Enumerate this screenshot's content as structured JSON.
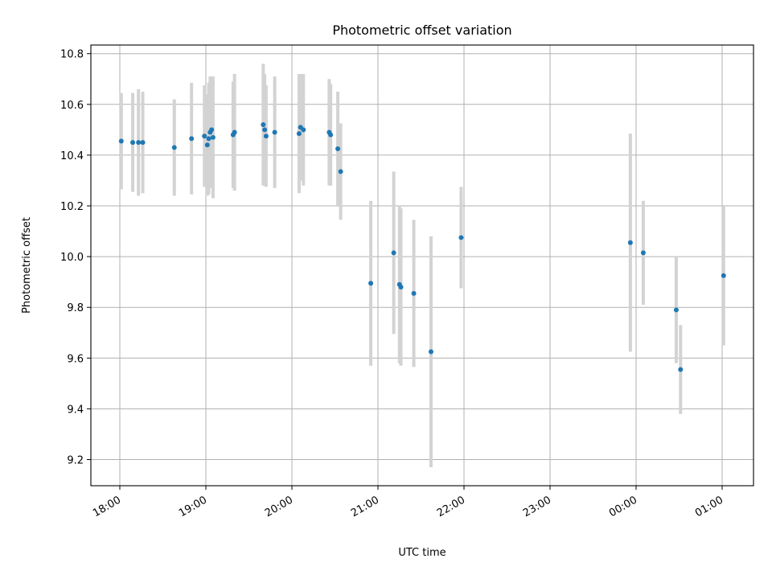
{
  "chart_data": {
    "type": "scatter",
    "title": "Photometric offset variation",
    "xlabel": "UTC time",
    "ylabel": "Photometric offset",
    "x_tick_labels": [
      "18:00",
      "19:00",
      "20:00",
      "21:00",
      "22:00",
      "23:00",
      "00:00",
      "01:00"
    ],
    "y_tick_labels": [
      "9.2",
      "9.4",
      "9.6",
      "9.8",
      "10.0",
      "10.2",
      "10.4",
      "10.6",
      "10.8"
    ],
    "y_ticks": [
      9.2,
      9.4,
      9.6,
      9.8,
      10.0,
      10.2,
      10.4,
      10.6,
      10.8
    ],
    "xlim": [
      "17:40",
      "01:22 (next day)"
    ],
    "ylim": [
      9.09,
      10.83
    ],
    "grid": true,
    "marker_color": "#1f77b4",
    "errorbar_color": "#d3d3d3",
    "points": [
      {
        "t": "18:01",
        "y": 10.455,
        "err": 0.19
      },
      {
        "t": "18:09",
        "y": 10.45,
        "err": 0.195
      },
      {
        "t": "18:13",
        "y": 10.45,
        "err": 0.21
      },
      {
        "t": "18:16",
        "y": 10.45,
        "err": 0.2
      },
      {
        "t": "18:38",
        "y": 10.43,
        "err": 0.19
      },
      {
        "t": "18:50",
        "y": 10.465,
        "err": 0.22
      },
      {
        "t": "18:59",
        "y": 10.475,
        "err": 0.2
      },
      {
        "t": "19:01",
        "y": 10.44,
        "err": 0.2
      },
      {
        "t": "19:02",
        "y": 10.465,
        "err": 0.22
      },
      {
        "t": "19:03",
        "y": 10.49,
        "err": 0.22
      },
      {
        "t": "19:04",
        "y": 10.5,
        "err": 0.21
      },
      {
        "t": "19:05",
        "y": 10.47,
        "err": 0.24
      },
      {
        "t": "19:19",
        "y": 10.48,
        "err": 0.21
      },
      {
        "t": "19:20",
        "y": 10.49,
        "err": 0.23
      },
      {
        "t": "19:40",
        "y": 10.52,
        "err": 0.24
      },
      {
        "t": "19:41",
        "y": 10.5,
        "err": 0.22
      },
      {
        "t": "19:42",
        "y": 10.475,
        "err": 0.2
      },
      {
        "t": "19:48",
        "y": 10.49,
        "err": 0.22
      },
      {
        "t": "20:05",
        "y": 10.485,
        "err": 0.235
      },
      {
        "t": "20:06",
        "y": 10.51,
        "err": 0.21
      },
      {
        "t": "20:08",
        "y": 10.5,
        "err": 0.22
      },
      {
        "t": "20:26",
        "y": 10.49,
        "err": 0.21
      },
      {
        "t": "20:27",
        "y": 10.48,
        "err": 0.2
      },
      {
        "t": "20:32",
        "y": 10.425,
        "err": 0.225
      },
      {
        "t": "20:34",
        "y": 10.335,
        "err": 0.19
      },
      {
        "t": "20:55",
        "y": 9.895,
        "err": 0.325
      },
      {
        "t": "21:11",
        "y": 10.015,
        "err": 0.32
      },
      {
        "t": "21:15",
        "y": 9.89,
        "err": 0.31
      },
      {
        "t": "21:16",
        "y": 9.88,
        "err": 0.31
      },
      {
        "t": "21:25",
        "y": 9.855,
        "err": 0.29
      },
      {
        "t": "21:37",
        "y": 9.625,
        "err": 0.455
      },
      {
        "t": "21:58",
        "y": 10.075,
        "err": 0.2
      },
      {
        "t": "23:56",
        "y": 10.055,
        "err": 0.43
      },
      {
        "t": "00:05",
        "y": 10.015,
        "err": 0.205
      },
      {
        "t": "00:28",
        "y": 9.79,
        "err": 0.21
      },
      {
        "t": "00:31",
        "y": 9.555,
        "err": 0.175
      },
      {
        "t": "01:01",
        "y": 9.925,
        "err": 0.275
      }
    ]
  }
}
